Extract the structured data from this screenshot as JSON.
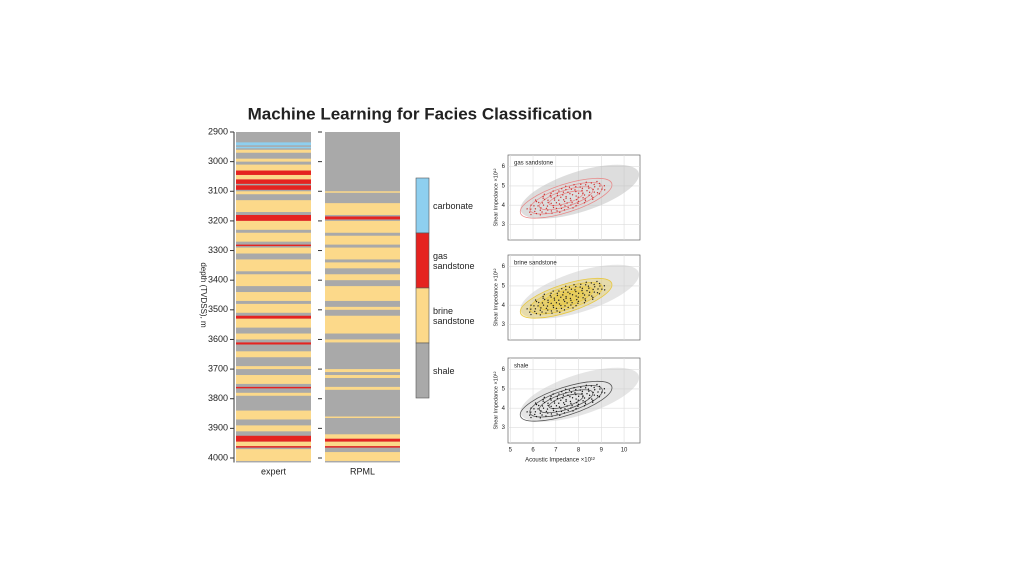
{
  "title": "Machine Learning for Facies Classification",
  "depth_axis": {
    "label": "depth (TVDSS), m",
    "ylim": [
      2900,
      4015
    ],
    "ticks": [
      2900,
      3000,
      3100,
      3200,
      3300,
      3400,
      3500,
      3600,
      3700,
      3800,
      3900,
      4000
    ]
  },
  "legend": [
    {
      "label": "carbonate",
      "color": "#8ecfef"
    },
    {
      "label": "gas sandstone",
      "color": "#e52320"
    },
    {
      "label": "brine sandstone",
      "color": "#fcd98a"
    },
    {
      "label": "shale",
      "color": "#a9a9a9"
    }
  ],
  "background_facies": "shale",
  "columns": [
    {
      "label": "expert",
      "bands": [
        {
          "top": 2935,
          "bottom": 2945,
          "facies": "carbonate"
        },
        {
          "top": 2950,
          "bottom": 2955,
          "facies": "carbonate"
        },
        {
          "top": 2960,
          "bottom": 2970,
          "facies": "brine sandstone"
        },
        {
          "top": 2990,
          "bottom": 3000,
          "facies": "brine sandstone"
        },
        {
          "top": 3010,
          "bottom": 3030,
          "facies": "brine sandstone"
        },
        {
          "top": 3030,
          "bottom": 3045,
          "facies": "gas sandstone"
        },
        {
          "top": 3045,
          "bottom": 3060,
          "facies": "brine sandstone"
        },
        {
          "top": 3060,
          "bottom": 3075,
          "facies": "gas sandstone"
        },
        {
          "top": 3080,
          "bottom": 3095,
          "facies": "gas sandstone"
        },
        {
          "top": 3100,
          "bottom": 3110,
          "facies": "brine sandstone"
        },
        {
          "top": 3130,
          "bottom": 3170,
          "facies": "brine sandstone"
        },
        {
          "top": 3180,
          "bottom": 3200,
          "facies": "gas sandstone"
        },
        {
          "top": 3200,
          "bottom": 3230,
          "facies": "brine sandstone"
        },
        {
          "top": 3240,
          "bottom": 3270,
          "facies": "brine sandstone"
        },
        {
          "top": 3280,
          "bottom": 3285,
          "facies": "gas sandstone"
        },
        {
          "top": 3290,
          "bottom": 3310,
          "facies": "brine sandstone"
        },
        {
          "top": 3330,
          "bottom": 3370,
          "facies": "brine sandstone"
        },
        {
          "top": 3380,
          "bottom": 3420,
          "facies": "brine sandstone"
        },
        {
          "top": 3440,
          "bottom": 3470,
          "facies": "brine sandstone"
        },
        {
          "top": 3480,
          "bottom": 3510,
          "facies": "brine sandstone"
        },
        {
          "top": 3520,
          "bottom": 3530,
          "facies": "gas sandstone"
        },
        {
          "top": 3530,
          "bottom": 3560,
          "facies": "brine sandstone"
        },
        {
          "top": 3580,
          "bottom": 3600,
          "facies": "brine sandstone"
        },
        {
          "top": 3610,
          "bottom": 3617,
          "facies": "gas sandstone"
        },
        {
          "top": 3640,
          "bottom": 3660,
          "facies": "brine sandstone"
        },
        {
          "top": 3690,
          "bottom": 3700,
          "facies": "brine sandstone"
        },
        {
          "top": 3720,
          "bottom": 3750,
          "facies": "brine sandstone"
        },
        {
          "top": 3760,
          "bottom": 3765,
          "facies": "gas sandstone"
        },
        {
          "top": 3780,
          "bottom": 3790,
          "facies": "brine sandstone"
        },
        {
          "top": 3840,
          "bottom": 3870,
          "facies": "brine sandstone"
        },
        {
          "top": 3890,
          "bottom": 3910,
          "facies": "brine sandstone"
        },
        {
          "top": 3925,
          "bottom": 3945,
          "facies": "gas sandstone"
        },
        {
          "top": 3945,
          "bottom": 3960,
          "facies": "brine sandstone"
        },
        {
          "top": 3960,
          "bottom": 3965,
          "facies": "gas sandstone"
        },
        {
          "top": 3970,
          "bottom": 4010,
          "facies": "brine sandstone"
        }
      ]
    },
    {
      "label": "RPML",
      "bands": [
        {
          "top": 3100,
          "bottom": 3105,
          "facies": "brine sandstone"
        },
        {
          "top": 3140,
          "bottom": 3180,
          "facies": "brine sandstone"
        },
        {
          "top": 3185,
          "bottom": 3195,
          "facies": "gas sandstone"
        },
        {
          "top": 3200,
          "bottom": 3240,
          "facies": "brine sandstone"
        },
        {
          "top": 3250,
          "bottom": 3280,
          "facies": "brine sandstone"
        },
        {
          "top": 3290,
          "bottom": 3330,
          "facies": "brine sandstone"
        },
        {
          "top": 3340,
          "bottom": 3360,
          "facies": "brine sandstone"
        },
        {
          "top": 3380,
          "bottom": 3400,
          "facies": "brine sandstone"
        },
        {
          "top": 3420,
          "bottom": 3470,
          "facies": "brine sandstone"
        },
        {
          "top": 3490,
          "bottom": 3500,
          "facies": "brine sandstone"
        },
        {
          "top": 3520,
          "bottom": 3580,
          "facies": "brine sandstone"
        },
        {
          "top": 3600,
          "bottom": 3610,
          "facies": "brine sandstone"
        },
        {
          "top": 3700,
          "bottom": 3710,
          "facies": "brine sandstone"
        },
        {
          "top": 3720,
          "bottom": 3730,
          "facies": "brine sandstone"
        },
        {
          "top": 3760,
          "bottom": 3770,
          "facies": "brine sandstone"
        },
        {
          "top": 3860,
          "bottom": 3865,
          "facies": "brine sandstone"
        },
        {
          "top": 3920,
          "bottom": 3935,
          "facies": "brine sandstone"
        },
        {
          "top": 3935,
          "bottom": 3945,
          "facies": "gas sandstone"
        },
        {
          "top": 3945,
          "bottom": 3960,
          "facies": "brine sandstone"
        },
        {
          "top": 3960,
          "bottom": 3965,
          "facies": "gas sandstone"
        },
        {
          "top": 3980,
          "bottom": 4010,
          "facies": "brine sandstone"
        }
      ]
    }
  ],
  "crossplots": {
    "y_label": "Shear Impedance ×10¹²",
    "x_label": "Acoustic Impedance ×10¹²",
    "xlim": [
      4.9,
      10.7
    ],
    "xticks": [
      5,
      6,
      7,
      8,
      9,
      10
    ],
    "ylim": [
      2.2,
      6.6
    ],
    "yticks": [
      3,
      4,
      5,
      6
    ],
    "panels": [
      {
        "label": "gas sandstone"
      },
      {
        "label": "brine sandstone"
      },
      {
        "label": "shale"
      }
    ]
  }
}
